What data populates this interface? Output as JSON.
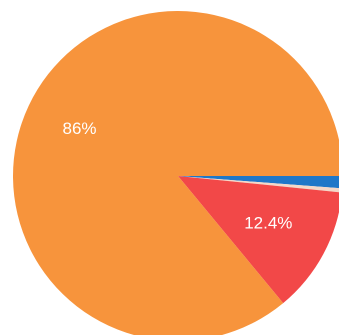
{
  "chart_data": {
    "type": "pie",
    "start_angle_deg": 0,
    "direction": "clockwise",
    "slices": [
      {
        "label": "",
        "value": 1.2,
        "display": "",
        "color": "#1f77c8"
      },
      {
        "label": "",
        "value": 0.4,
        "display": "",
        "color": "#f4d8c8"
      },
      {
        "label": "",
        "value": 12.4,
        "display": "12.4%",
        "color": "#f24848"
      },
      {
        "label": "",
        "value": 86.0,
        "display": "86%",
        "color": "#f7943c"
      }
    ]
  }
}
